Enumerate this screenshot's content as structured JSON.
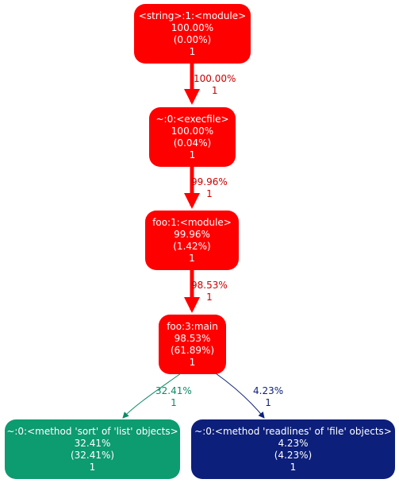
{
  "colors": {
    "red": "#ff0000",
    "green": "#0d9b70",
    "navy": "#0c1f7a",
    "edge_green": "#0d8a66",
    "edge_navy": "#0c1f7a"
  },
  "nodes": {
    "module_string": {
      "name": "<string>:1:<module>",
      "total": "100.00%",
      "self": "(0.00%)",
      "calls": "1",
      "color": "#ff0000"
    },
    "execfile": {
      "name": "~:0:<execfile>",
      "total": "100.00%",
      "self": "(0.04%)",
      "calls": "1",
      "color": "#ff0000"
    },
    "foo_module": {
      "name": "foo:1:<module>",
      "total": "99.96%",
      "self": "(1.42%)",
      "calls": "1",
      "color": "#ff0000"
    },
    "foo_main": {
      "name": "foo:3:main",
      "total": "98.53%",
      "self": "(61.89%)",
      "calls": "1",
      "color": "#ff0000"
    },
    "sort_method": {
      "name": "~:0:<method 'sort' of 'list' objects>",
      "total": "32.41%",
      "self": "(32.41%)",
      "calls": "1",
      "color": "#0d9b70"
    },
    "readlines_method": {
      "name": "~:0:<method 'readlines' of 'file' objects>",
      "total": "4.23%",
      "self": "(4.23%)",
      "calls": "1",
      "color": "#0c1f7a"
    }
  },
  "edges": {
    "e1": {
      "percent": "100.00%",
      "calls": "1",
      "color": "#ff0000"
    },
    "e2": {
      "percent": "99.96%",
      "calls": "1",
      "color": "#ff0000"
    },
    "e3": {
      "percent": "98.53%",
      "calls": "1",
      "color": "#ff0000"
    },
    "e4": {
      "percent": "32.41%",
      "calls": "1",
      "color": "#0d8a66"
    },
    "e5": {
      "percent": "4.23%",
      "calls": "1",
      "color": "#0c1f7a"
    }
  }
}
